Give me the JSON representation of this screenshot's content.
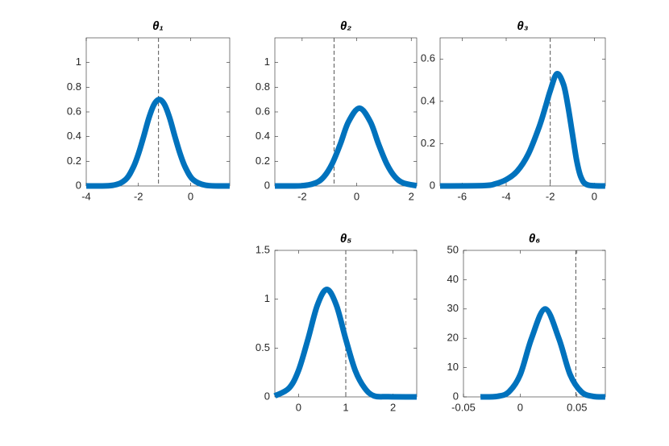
{
  "chart_data": [
    {
      "type": "line",
      "title": "θ₁",
      "color": "#0072bd",
      "x": [
        -4,
        -3,
        -2.5,
        -2.2,
        -2,
        -1.8,
        -1.6,
        -1.4,
        -1.2,
        -1,
        -0.8,
        -0.6,
        -0.4,
        -0.2,
        0.1,
        0.6,
        1.5
      ],
      "values": [
        0,
        0.005,
        0.05,
        0.15,
        0.26,
        0.4,
        0.55,
        0.66,
        0.7,
        0.66,
        0.55,
        0.4,
        0.26,
        0.15,
        0.05,
        0.005,
        0
      ],
      "reference_x": -1.23,
      "xlim": [
        -4,
        1.5
      ],
      "xticks": [
        -4,
        -2,
        0
      ],
      "ylim": [
        0,
        1.2
      ],
      "yticks": [
        0,
        0.2,
        0.4,
        0.6,
        0.8,
        1
      ]
    },
    {
      "type": "line",
      "title": "θ₂",
      "color": "#0072bd",
      "x": [
        -3,
        -2,
        -1.5,
        -1.2,
        -0.9,
        -0.6,
        -0.3,
        0.1,
        0.5,
        0.8,
        1.1,
        1.4,
        1.7,
        2.2
      ],
      "values": [
        0,
        0.002,
        0.025,
        0.075,
        0.18,
        0.34,
        0.52,
        0.63,
        0.52,
        0.34,
        0.18,
        0.075,
        0.025,
        0.002
      ],
      "reference_x": -0.83,
      "xlim": [
        -3,
        2.2
      ],
      "xticks": [
        -2,
        0,
        2
      ],
      "ylim": [
        0,
        1.2
      ],
      "yticks": [
        0,
        0.2,
        0.4,
        0.6,
        0.8,
        1
      ]
    },
    {
      "type": "line",
      "title": "θ₃",
      "color": "#0072bd",
      "x": [
        -7,
        -5,
        -4.5,
        -4,
        -3.5,
        -3,
        -2.5,
        -2.2,
        -2,
        -1.7,
        -1.4,
        -1.2,
        -1,
        -0.8,
        -0.6,
        -0.3,
        0.5
      ],
      "values": [
        0,
        0.002,
        0.01,
        0.03,
        0.07,
        0.15,
        0.28,
        0.38,
        0.45,
        0.53,
        0.48,
        0.38,
        0.25,
        0.12,
        0.04,
        0.005,
        0
      ],
      "reference_x": -2,
      "xlim": [
        -7,
        0.5
      ],
      "xticks": [
        -6,
        -4,
        -2,
        0
      ],
      "ylim": [
        0,
        0.7
      ],
      "yticks": [
        0,
        0.2,
        0.4,
        0.6
      ]
    },
    {
      "type": "line",
      "title": "θ₅",
      "color": "#0072bd",
      "x": [
        -0.5,
        -0.2,
        0,
        0.2,
        0.4,
        0.6,
        0.8,
        1.0,
        1.2,
        1.4,
        1.6,
        1.9,
        2.5
      ],
      "values": [
        0.01,
        0.09,
        0.27,
        0.59,
        0.94,
        1.1,
        0.94,
        0.59,
        0.27,
        0.09,
        0.01,
        0.002,
        0
      ],
      "reference_x": 1,
      "xlim": [
        -0.5,
        2.5
      ],
      "xticks": [
        0,
        1,
        2
      ],
      "ylim": [
        0,
        1.5
      ],
      "yticks": [
        0,
        0.5,
        1,
        1.5
      ]
    },
    {
      "type": "line",
      "title": "θ₆",
      "color": "#0072bd",
      "x": [
        -0.035,
        -0.02,
        -0.01,
        0,
        0.01,
        0.022,
        0.034,
        0.044,
        0.054,
        0.064,
        0.075
      ],
      "values": [
        0,
        0.2,
        1.7,
        7.6,
        20,
        30,
        20,
        7.6,
        1.7,
        0.2,
        0
      ],
      "reference_x": 0.049,
      "xlim": [
        -0.05,
        0.075
      ],
      "xticks": [
        -0.05,
        0,
        0.05
      ],
      "ylim": [
        0,
        50
      ],
      "yticks": [
        0,
        10,
        20,
        30,
        40,
        50
      ]
    }
  ]
}
